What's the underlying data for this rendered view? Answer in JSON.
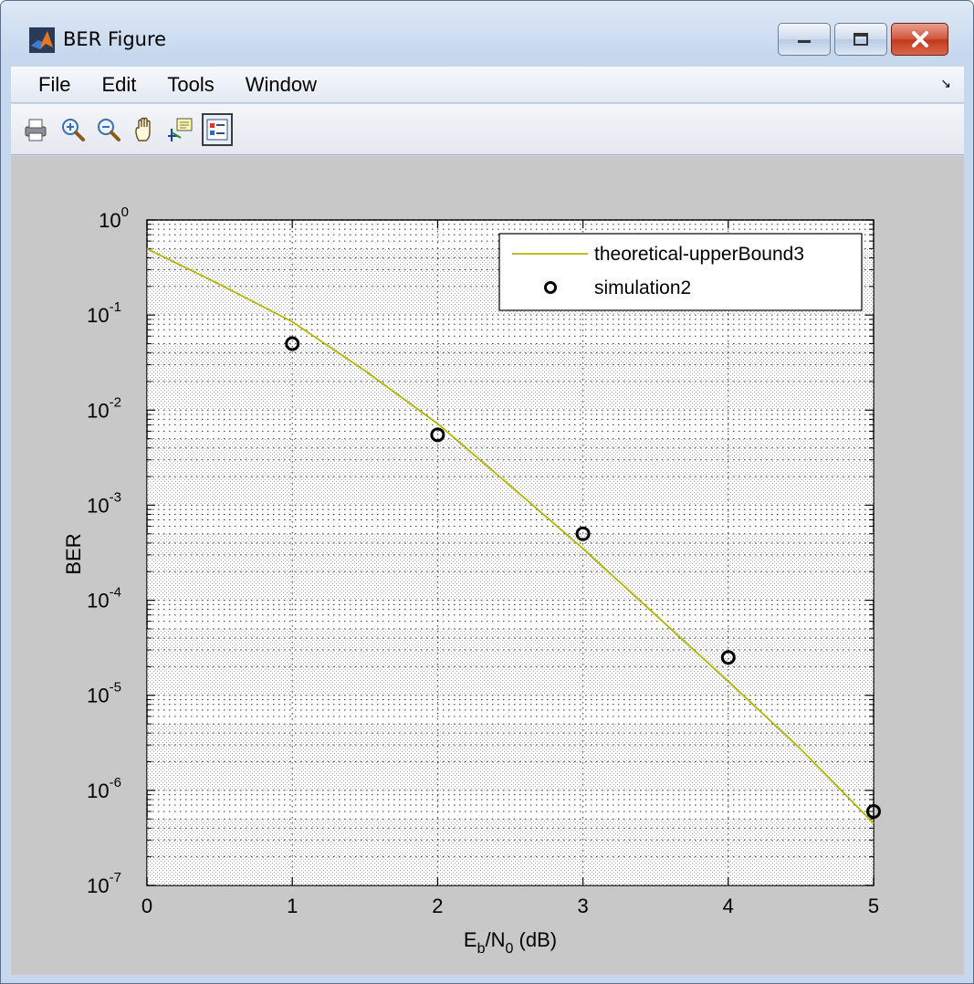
{
  "window": {
    "title": "BER Figure",
    "controls": {
      "minimize": "minimize-icon",
      "maximize": "maximize-icon",
      "close": "close-icon"
    }
  },
  "menu": {
    "items": [
      "File",
      "Edit",
      "Tools",
      "Window"
    ]
  },
  "toolbar": {
    "tools": [
      "print-icon",
      "zoom-in-icon",
      "zoom-out-icon",
      "pan-icon",
      "data-cursor-icon",
      "legend-icon"
    ]
  },
  "chart_data": {
    "type": "line",
    "title": "",
    "xlabel": {
      "base": "E",
      "sub1": "b",
      "mid": "/N",
      "sub2": "0",
      "tail": " (dB)"
    },
    "ylabel": "BER",
    "xlim": [
      0,
      5
    ],
    "ylim_log10": [
      -7,
      0
    ],
    "yscale": "log",
    "grid": true,
    "legend_position": "top-right",
    "x_ticks": [
      "0",
      "1",
      "2",
      "3",
      "4",
      "5"
    ],
    "y_ticks": [
      {
        "base": "10",
        "exp": "0"
      },
      {
        "base": "10",
        "exp": "-1"
      },
      {
        "base": "10",
        "exp": "-2"
      },
      {
        "base": "10",
        "exp": "-3"
      },
      {
        "base": "10",
        "exp": "-4"
      },
      {
        "base": "10",
        "exp": "-5"
      },
      {
        "base": "10",
        "exp": "-6"
      },
      {
        "base": "10",
        "exp": "-7"
      }
    ],
    "series": [
      {
        "name": "theoretical-upperBound3",
        "style": "line",
        "color": "#b4b400",
        "x": [
          0,
          0.5,
          1,
          1.5,
          2,
          2.5,
          3,
          3.5,
          4,
          4.5,
          5
        ],
        "y": [
          0.5,
          0.21,
          0.085,
          0.026,
          0.0072,
          0.0016,
          0.00035,
          7e-05,
          1.4e-05,
          2.7e-06,
          4.5e-07
        ]
      },
      {
        "name": "simulation2",
        "style": "marker-circle",
        "color": "#000000",
        "x": [
          1,
          2,
          3,
          4,
          5
        ],
        "y": [
          0.05,
          0.0055,
          0.0005,
          2.5e-05,
          6e-07
        ]
      }
    ]
  }
}
